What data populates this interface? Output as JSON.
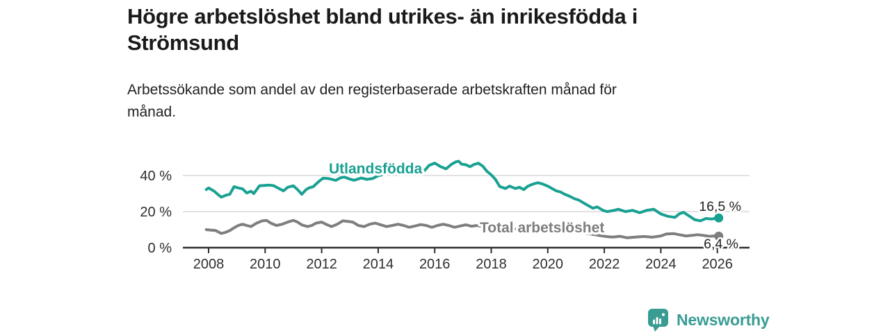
{
  "header": {
    "title_lines": [
      "Högre arbetslöshet bland utrikes- än inrikesfödda i",
      "Strömsund"
    ],
    "subtitle_lines": [
      "Arbetssökande som andel av den registerbaserade arbetskraften månad för",
      "månad."
    ]
  },
  "chart_data": {
    "type": "line",
    "title": "Högre arbetslöshet bland utrikes- än inrikesfödda i Strömsund",
    "subtitle": "Arbetssökande som andel av den registerbaserade arbetskraften månad för månad.",
    "xlabel": "",
    "ylabel": "",
    "legend_position": "inline-labels",
    "x_axis": {
      "ticks": [
        2008,
        2010,
        2012,
        2014,
        2016,
        2018,
        2020,
        2022,
        2024,
        2026
      ],
      "range": [
        2007.1,
        2027.1
      ]
    },
    "y_axis": {
      "ticks": [
        {
          "value": 0,
          "label": "0 %"
        },
        {
          "value": 20,
          "label": "20 %"
        },
        {
          "value": 40,
          "label": "40 %"
        }
      ],
      "range": [
        0,
        50
      ],
      "grid": true
    },
    "series": [
      {
        "id": "utlandsfodda",
        "name": "Utlandsfödda",
        "color": "#18A192",
        "end_label": "16,5 %",
        "end_value": 16.5,
        "points": [
          [
            2007.92,
            32.2
          ],
          [
            2008.0,
            33.1
          ],
          [
            2008.2,
            31.3
          ],
          [
            2008.33,
            29.5
          ],
          [
            2008.45,
            28.0
          ],
          [
            2008.6,
            29.0
          ],
          [
            2008.75,
            29.6
          ],
          [
            2008.9,
            33.8
          ],
          [
            2009.05,
            33.1
          ],
          [
            2009.2,
            32.6
          ],
          [
            2009.35,
            30.3
          ],
          [
            2009.5,
            31.3
          ],
          [
            2009.6,
            30.0
          ],
          [
            2009.8,
            34.3
          ],
          [
            2010.0,
            34.5
          ],
          [
            2010.15,
            34.7
          ],
          [
            2010.3,
            34.4
          ],
          [
            2010.45,
            33.1
          ],
          [
            2010.65,
            31.5
          ],
          [
            2010.8,
            33.5
          ],
          [
            2011.0,
            34.3
          ],
          [
            2011.15,
            32.2
          ],
          [
            2011.3,
            29.6
          ],
          [
            2011.45,
            32.2
          ],
          [
            2011.55,
            33.1
          ],
          [
            2011.7,
            33.8
          ],
          [
            2011.9,
            36.7
          ],
          [
            2012.05,
            38.5
          ],
          [
            2012.25,
            38.3
          ],
          [
            2012.5,
            37.3
          ],
          [
            2012.65,
            38.6
          ],
          [
            2012.8,
            39.2
          ],
          [
            2013.0,
            38.0
          ],
          [
            2013.15,
            37.4
          ],
          [
            2013.4,
            38.6
          ],
          [
            2013.6,
            37.9
          ],
          [
            2013.8,
            38.3
          ],
          [
            2014.0,
            39.9
          ],
          [
            2014.2,
            40.6
          ],
          [
            2014.4,
            41.8
          ],
          [
            2014.7,
            42.8
          ],
          [
            2014.9,
            41.2
          ],
          [
            2015.1,
            42.4
          ],
          [
            2015.25,
            43.1
          ],
          [
            2015.4,
            44.1
          ],
          [
            2015.6,
            42.0
          ],
          [
            2015.8,
            45.6
          ],
          [
            2016.0,
            46.9
          ],
          [
            2016.2,
            45.0
          ],
          [
            2016.4,
            43.7
          ],
          [
            2016.6,
            46.3
          ],
          [
            2016.75,
            47.6
          ],
          [
            2016.85,
            47.9
          ],
          [
            2016.95,
            46.3
          ],
          [
            2017.1,
            46.0
          ],
          [
            2017.25,
            44.9
          ],
          [
            2017.4,
            46.2
          ],
          [
            2017.55,
            46.8
          ],
          [
            2017.7,
            45.2
          ],
          [
            2017.85,
            42.3
          ],
          [
            2018.0,
            40.4
          ],
          [
            2018.15,
            37.8
          ],
          [
            2018.3,
            33.9
          ],
          [
            2018.5,
            32.8
          ],
          [
            2018.65,
            34.1
          ],
          [
            2018.85,
            32.8
          ],
          [
            2019.0,
            33.5
          ],
          [
            2019.15,
            32.2
          ],
          [
            2019.3,
            34.1
          ],
          [
            2019.5,
            35.4
          ],
          [
            2019.65,
            36.0
          ],
          [
            2019.8,
            35.4
          ],
          [
            2020.0,
            34.1
          ],
          [
            2020.15,
            32.8
          ],
          [
            2020.3,
            31.5
          ],
          [
            2020.45,
            30.9
          ],
          [
            2020.6,
            29.6
          ],
          [
            2020.8,
            28.3
          ],
          [
            2020.95,
            27.1
          ],
          [
            2021.1,
            26.4
          ],
          [
            2021.3,
            24.5
          ],
          [
            2021.45,
            23.2
          ],
          [
            2021.6,
            21.9
          ],
          [
            2021.75,
            22.6
          ],
          [
            2021.95,
            20.7
          ],
          [
            2022.1,
            20.0
          ],
          [
            2022.35,
            20.7
          ],
          [
            2022.5,
            21.3
          ],
          [
            2022.75,
            20.0
          ],
          [
            2023.0,
            20.7
          ],
          [
            2023.25,
            19.4
          ],
          [
            2023.5,
            20.7
          ],
          [
            2023.75,
            21.3
          ],
          [
            2024.0,
            18.7
          ],
          [
            2024.25,
            17.4
          ],
          [
            2024.5,
            16.8
          ],
          [
            2024.65,
            18.7
          ],
          [
            2024.8,
            19.6
          ],
          [
            2024.95,
            18.1
          ],
          [
            2025.2,
            15.5
          ],
          [
            2025.4,
            14.9
          ],
          [
            2025.6,
            16.2
          ],
          [
            2025.8,
            15.9
          ],
          [
            2026.05,
            16.5
          ]
        ]
      },
      {
        "id": "total",
        "name": "Total arbetslöshet",
        "color": "#7E7E7E",
        "end_label": "6,4 %",
        "end_value": 6.4,
        "points": [
          [
            2007.92,
            10.0
          ],
          [
            2008.1,
            9.7
          ],
          [
            2008.25,
            9.5
          ],
          [
            2008.45,
            7.9
          ],
          [
            2008.6,
            8.5
          ],
          [
            2008.75,
            9.5
          ],
          [
            2008.9,
            11.0
          ],
          [
            2009.05,
            12.3
          ],
          [
            2009.2,
            13.0
          ],
          [
            2009.35,
            12.3
          ],
          [
            2009.5,
            11.7
          ],
          [
            2009.7,
            13.6
          ],
          [
            2009.9,
            14.9
          ],
          [
            2010.05,
            15.1
          ],
          [
            2010.2,
            13.6
          ],
          [
            2010.4,
            12.3
          ],
          [
            2010.6,
            13.0
          ],
          [
            2010.8,
            14.2
          ],
          [
            2011.0,
            15.1
          ],
          [
            2011.15,
            14.2
          ],
          [
            2011.3,
            12.6
          ],
          [
            2011.5,
            11.7
          ],
          [
            2011.65,
            12.3
          ],
          [
            2011.8,
            13.6
          ],
          [
            2012.0,
            14.2
          ],
          [
            2012.15,
            13.0
          ],
          [
            2012.35,
            11.7
          ],
          [
            2012.55,
            13.0
          ],
          [
            2012.75,
            14.9
          ],
          [
            2012.9,
            14.6
          ],
          [
            2013.1,
            14.2
          ],
          [
            2013.3,
            12.3
          ],
          [
            2013.5,
            11.7
          ],
          [
            2013.7,
            13.0
          ],
          [
            2013.9,
            13.6
          ],
          [
            2014.1,
            12.6
          ],
          [
            2014.3,
            11.7
          ],
          [
            2014.5,
            12.3
          ],
          [
            2014.7,
            13.0
          ],
          [
            2014.9,
            12.3
          ],
          [
            2015.1,
            11.3
          ],
          [
            2015.3,
            12.0
          ],
          [
            2015.5,
            12.8
          ],
          [
            2015.7,
            12.3
          ],
          [
            2015.9,
            11.3
          ],
          [
            2016.1,
            12.3
          ],
          [
            2016.3,
            13.0
          ],
          [
            2016.5,
            12.3
          ],
          [
            2016.7,
            11.3
          ],
          [
            2016.9,
            12.0
          ],
          [
            2017.1,
            12.7
          ],
          [
            2017.3,
            11.9
          ],
          [
            2017.5,
            12.3
          ],
          [
            2017.7,
            11.7
          ],
          [
            2017.9,
            11.0
          ],
          [
            2018.2,
            10.6
          ],
          [
            2018.5,
            10.2
          ],
          [
            2018.8,
            10.5
          ],
          [
            2019.1,
            9.7
          ],
          [
            2019.4,
            9.9
          ],
          [
            2019.7,
            9.4
          ],
          [
            2020.0,
            9.6
          ],
          [
            2020.3,
            9.0
          ],
          [
            2020.6,
            9.3
          ],
          [
            2020.9,
            8.6
          ],
          [
            2021.2,
            8.2
          ],
          [
            2021.5,
            7.6
          ],
          [
            2021.8,
            6.8
          ],
          [
            2022.1,
            6.1
          ],
          [
            2022.3,
            5.9
          ],
          [
            2022.55,
            6.3
          ],
          [
            2022.8,
            5.5
          ],
          [
            2023.1,
            5.9
          ],
          [
            2023.4,
            6.2
          ],
          [
            2023.7,
            5.8
          ],
          [
            2024.0,
            6.5
          ],
          [
            2024.2,
            7.6
          ],
          [
            2024.45,
            7.8
          ],
          [
            2024.65,
            7.2
          ],
          [
            2024.9,
            6.5
          ],
          [
            2025.1,
            6.8
          ],
          [
            2025.3,
            7.2
          ],
          [
            2025.5,
            6.8
          ],
          [
            2025.7,
            6.3
          ],
          [
            2025.9,
            6.5
          ],
          [
            2026.05,
            6.4
          ]
        ]
      }
    ]
  },
  "branding": {
    "name": "Newsworthy",
    "icon": "newsworthy-chart-bubble-icon",
    "color": "#399C93"
  }
}
